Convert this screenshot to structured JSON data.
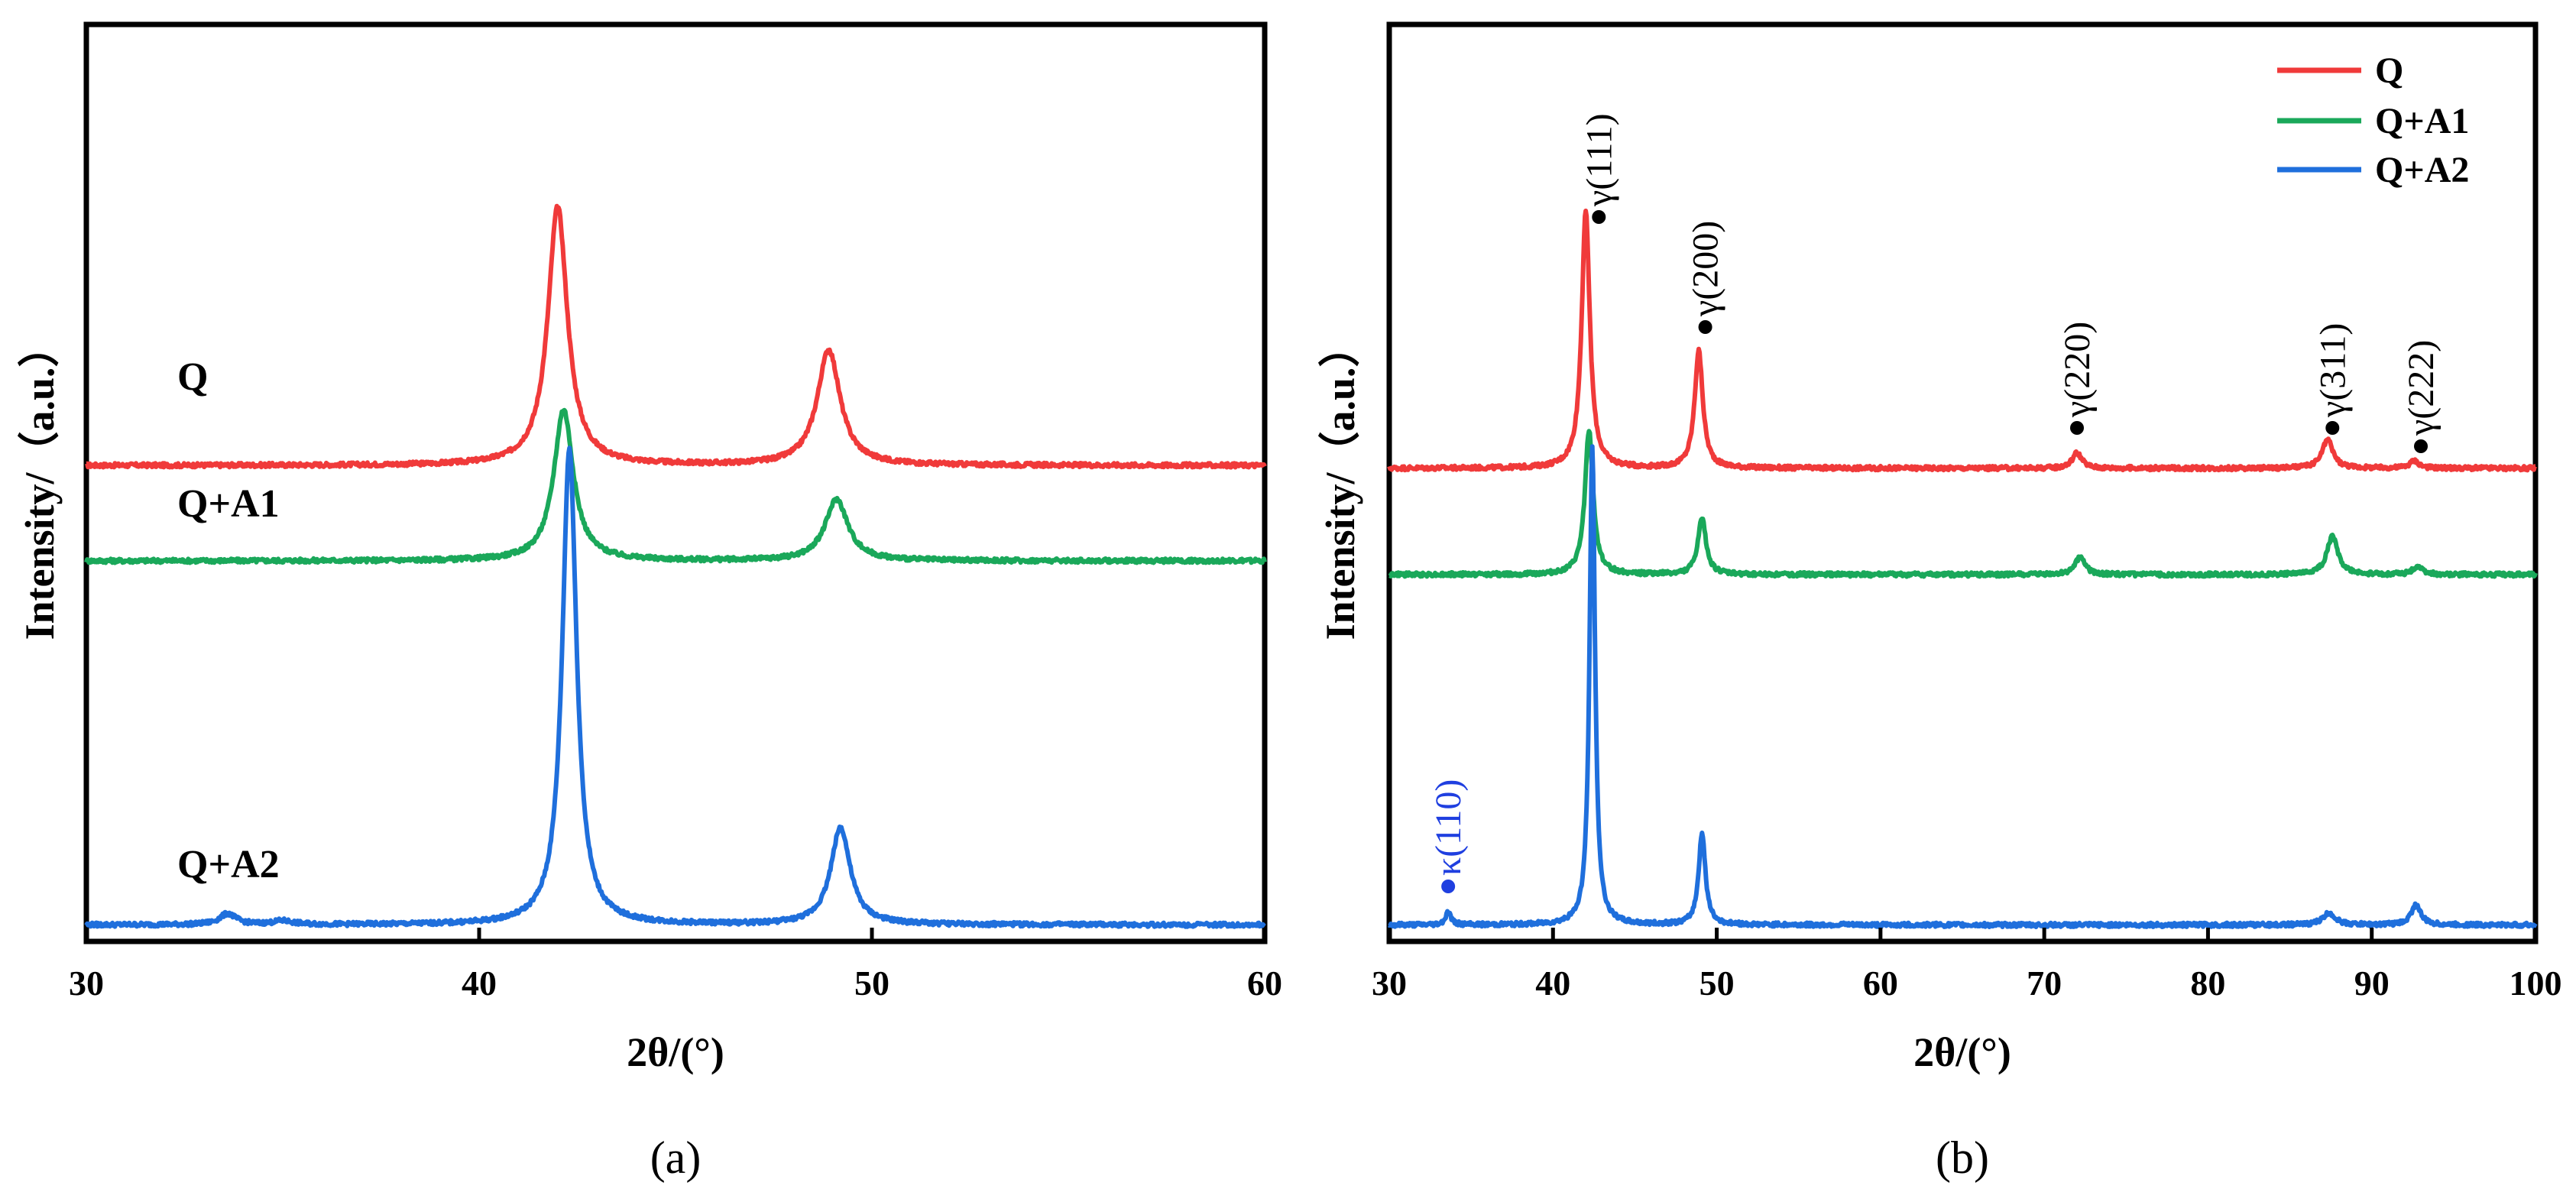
{
  "chart_data": [
    {
      "panel": "(a)",
      "type": "line",
      "xlabel": "2θ/(°)",
      "ylabel": "Intensity/（a.u.）",
      "xlim": [
        30,
        60
      ],
      "ylim": [
        0,
        100
      ],
      "xticks": [
        30,
        40,
        50,
        60
      ],
      "grid": false,
      "baseline_levels": [
        51.9,
        41.5,
        1.8
      ],
      "series": [
        {
          "name": "Q",
          "label": "Q",
          "color": "#f03a3a",
          "peaks": [
            {
              "x": 42.0,
              "h": 28.2,
              "w": 0.3
            },
            {
              "x": 48.9,
              "h": 12.6,
              "w": 0.35
            }
          ]
        },
        {
          "name": "Q+A1",
          "label": "Q+A1",
          "color": "#1aa85a",
          "peaks": [
            {
              "x": 42.15,
              "h": 16.5,
              "w": 0.3
            },
            {
              "x": 49.1,
              "h": 6.7,
              "w": 0.35
            }
          ]
        },
        {
          "name": "Q+A2",
          "label": "Q+A2",
          "color": "#1f6fdc",
          "peaks": [
            {
              "x": 33.6,
              "h": 1.2,
              "w": 0.25
            },
            {
              "x": 35.0,
              "h": 0.4,
              "w": 0.3
            },
            {
              "x": 42.3,
              "h": 52.0,
              "w": 0.22
            },
            {
              "x": 49.2,
              "h": 10.6,
              "w": 0.3
            }
          ]
        }
      ]
    },
    {
      "panel": "(b)",
      "type": "line",
      "xlabel": "2θ/(°)",
      "ylabel": "Intensity/（a.u.）",
      "xlim": [
        30,
        100
      ],
      "ylim": [
        0,
        100
      ],
      "xticks": [
        30,
        40,
        50,
        60,
        70,
        80,
        90,
        100
      ],
      "grid": false,
      "legend": "top-right",
      "baseline_levels": [
        51.6,
        40.0,
        1.8
      ],
      "series": [
        {
          "name": "Q",
          "color": "#f03a3a",
          "peaks": [
            {
              "x": 42.0,
              "h": 28.0,
              "w": 0.3
            },
            {
              "x": 48.9,
              "h": 12.8,
              "w": 0.3
            },
            {
              "x": 72.0,
              "h": 1.7,
              "w": 0.35
            },
            {
              "x": 87.3,
              "h": 3.1,
              "w": 0.4
            },
            {
              "x": 92.6,
              "h": 0.8,
              "w": 0.35
            }
          ]
        },
        {
          "name": "Q+A1",
          "color": "#1aa85a",
          "peaks": [
            {
              "x": 42.2,
              "h": 15.7,
              "w": 0.3
            },
            {
              "x": 49.1,
              "h": 6.1,
              "w": 0.3
            },
            {
              "x": 72.2,
              "h": 2.0,
              "w": 0.35
            },
            {
              "x": 87.6,
              "h": 4.2,
              "w": 0.4
            },
            {
              "x": 92.8,
              "h": 0.9,
              "w": 0.35
            }
          ]
        },
        {
          "name": "Q+A2",
          "color": "#1f6fdc",
          "peaks": [
            {
              "x": 33.6,
              "h": 1.4,
              "w": 0.2
            },
            {
              "x": 42.4,
              "h": 52.0,
              "w": 0.2
            },
            {
              "x": 49.1,
              "h": 10.0,
              "w": 0.25
            },
            {
              "x": 87.4,
              "h": 1.3,
              "w": 0.45
            },
            {
              "x": 92.7,
              "h": 2.2,
              "w": 0.35
            }
          ]
        }
      ],
      "annotations": [
        {
          "text": "γ(111)",
          "x": 42.8,
          "y": 79,
          "color": "#000000"
        },
        {
          "text": "γ(200)",
          "x": 49.3,
          "y": 67,
          "color": "#000000"
        },
        {
          "text": "γ(220)",
          "x": 72.0,
          "y": 56,
          "color": "#000000"
        },
        {
          "text": "γ(311)",
          "x": 87.6,
          "y": 56,
          "color": "#000000"
        },
        {
          "text": "γ(222)",
          "x": 93.0,
          "y": 54,
          "color": "#000000"
        },
        {
          "text": "κ(110)",
          "x": 33.6,
          "y": 6,
          "color": "#1f3fe0"
        }
      ]
    }
  ]
}
